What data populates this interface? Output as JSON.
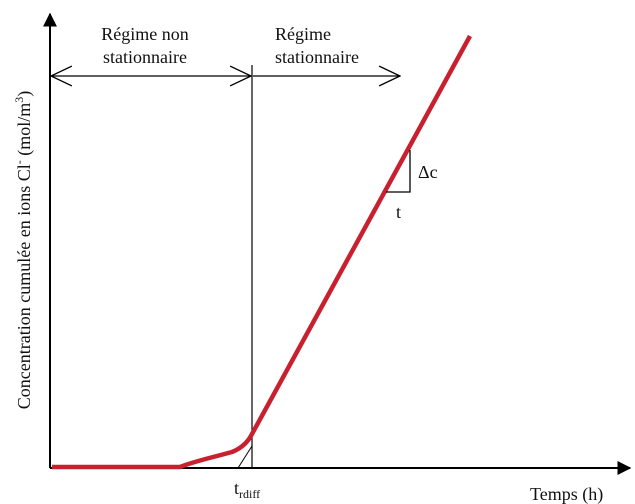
{
  "labels": {
    "left_region": [
      "Régime non",
      "stationnaire"
    ],
    "right_region": [
      "Régime",
      "stationnaire"
    ],
    "y_axis": {
      "main": "Concentration cumulée en ions Cl",
      "sup1": "-",
      "unit": " (mol/m",
      "sup2": "3",
      "close": ")"
    },
    "x_axis": "Temps (h)",
    "t_diff": {
      "base": "t",
      "sub": "rdiff"
    },
    "delta_c": "Δc",
    "t": "t"
  }
}
